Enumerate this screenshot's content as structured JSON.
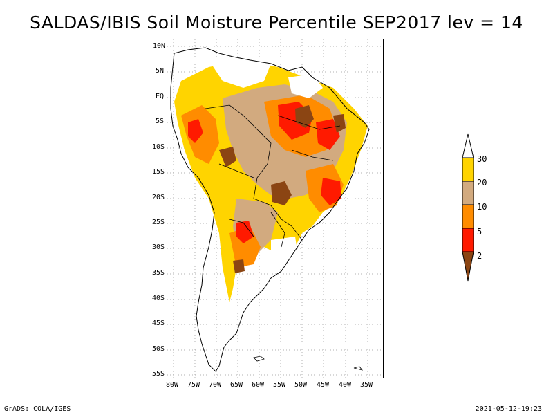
{
  "title": "SALDAS/IBIS Soil Moisture Percentile SEP2017 lev = 14",
  "lat_labels": [
    "10N",
    "5N",
    "EQ",
    "5S",
    "10S",
    "15S",
    "20S",
    "25S",
    "30S",
    "35S",
    "40S",
    "45S",
    "50S",
    "55S"
  ],
  "lon_labels": [
    "80W",
    "75W",
    "70W",
    "65W",
    "60W",
    "55W",
    "50W",
    "45W",
    "40W",
    "35W"
  ],
  "legend": {
    "thresholds": [
      "30",
      "20",
      "10",
      "5",
      "2"
    ],
    "colors": {
      "above_30": "#ffffff",
      "20_30": "#ffd400",
      "10_20": "#d2aa7f",
      "5_10": "#ff8c00",
      "2_5": "#ff1a00",
      "below_2": "#8b4513"
    }
  },
  "footer": {
    "left": "GrADS: COLA/IGES",
    "right": "2021-05-12-19:23"
  }
}
